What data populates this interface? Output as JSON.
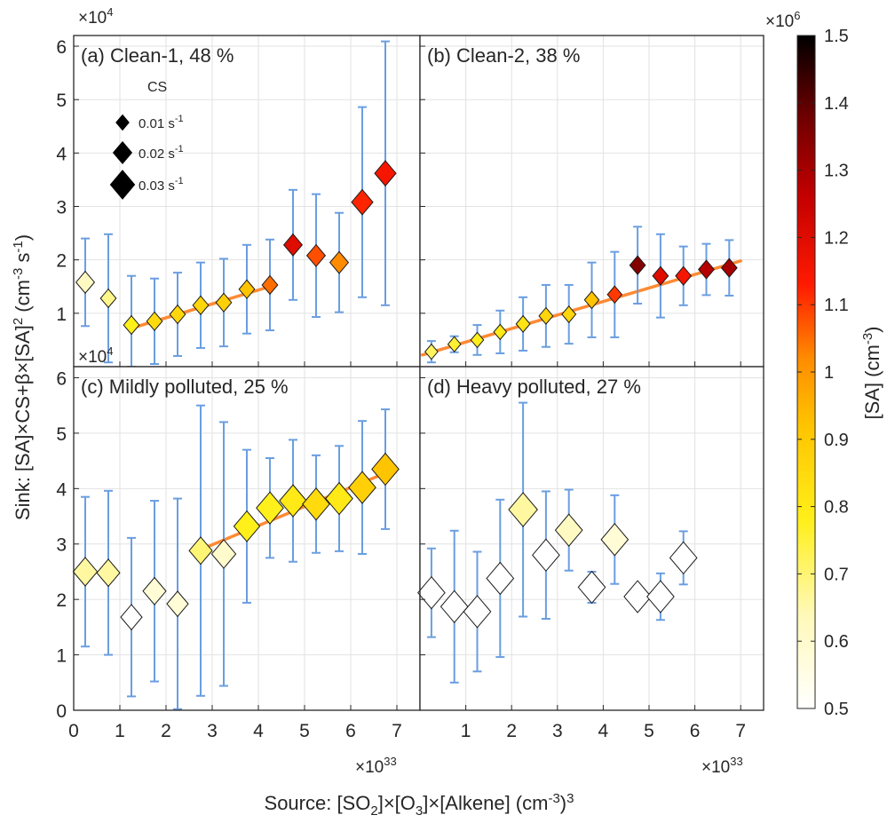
{
  "figure": {
    "y_multiplier_base": "×10",
    "y_multiplier_exp": "4",
    "x_multiplier_base": "×10",
    "x_multiplier_exp": "33",
    "ylabel": {
      "main": "Sink: [SA]×CS+β×[SA]",
      "sq": "2",
      "unit_open": " (cm",
      "unit_exp1": "-3",
      "unit_mid": " s",
      "unit_exp2": "-1",
      "unit_close": ")"
    },
    "xlabel": {
      "p1": "Source: [SO",
      "sub1": "2",
      "p2": "]×[O",
      "sub2": "3",
      "p3": "]×[Alkene] (cm",
      "sup1": "-3",
      "p4": ")",
      "sup2": "3"
    },
    "legend": {
      "title": "CS",
      "items": [
        {
          "label": "0.01 s",
          "exp": "-1",
          "cs": 0.01
        },
        {
          "label": "0.02 s",
          "exp": "-1",
          "cs": 0.02
        },
        {
          "label": "0.03 s",
          "exp": "-1",
          "cs": 0.03
        }
      ]
    },
    "colorbar": {
      "multiplier_base": "×10",
      "multiplier_exp": "6",
      "label": "[SA] (cm",
      "label_exp": "-3",
      "label_close": ")",
      "min": 0.5,
      "max": 1.5,
      "ticks": [
        "0.5",
        "0.6",
        "0.7",
        "0.8",
        "0.9",
        "1",
        "1.1",
        "1.2",
        "1.3",
        "1.4",
        "1.5"
      ]
    }
  },
  "chart_data": [
    {
      "type": "scatter",
      "title": "(a) Clean-1, 48 %",
      "xlim": [
        0,
        7.5
      ],
      "ylim": [
        0,
        6.2
      ],
      "x_ticks": [],
      "y_ticks": [
        "1",
        "2",
        "3",
        "4",
        "5",
        "6"
      ],
      "grid": true,
      "points": [
        {
          "x": 0.25,
          "y": 1.58,
          "err": 0.82,
          "sa": 0.62,
          "cs": 0.02
        },
        {
          "x": 0.75,
          "y": 1.28,
          "err": 1.2,
          "sa": 0.68,
          "cs": 0.015
        },
        {
          "x": 1.25,
          "y": 0.78,
          "err": 0.92,
          "sa": 0.78,
          "cs": 0.015
        },
        {
          "x": 1.75,
          "y": 0.85,
          "err": 0.8,
          "sa": 0.85,
          "cs": 0.015
        },
        {
          "x": 2.25,
          "y": 0.98,
          "err": 0.78,
          "sa": 0.86,
          "cs": 0.015
        },
        {
          "x": 2.75,
          "y": 1.15,
          "err": 0.8,
          "sa": 0.86,
          "cs": 0.015
        },
        {
          "x": 3.25,
          "y": 1.2,
          "err": 0.82,
          "sa": 0.88,
          "cs": 0.015
        },
        {
          "x": 3.75,
          "y": 1.45,
          "err": 0.83,
          "sa": 0.92,
          "cs": 0.015
        },
        {
          "x": 4.25,
          "y": 1.53,
          "err": 0.85,
          "sa": 1.05,
          "cs": 0.015
        },
        {
          "x": 4.75,
          "y": 2.28,
          "err": 1.03,
          "sa": 1.2,
          "cs": 0.02
        },
        {
          "x": 5.25,
          "y": 2.08,
          "err": 1.15,
          "sa": 1.08,
          "cs": 0.02
        },
        {
          "x": 5.75,
          "y": 1.95,
          "err": 0.93,
          "sa": 1.02,
          "cs": 0.02
        },
        {
          "x": 6.25,
          "y": 3.08,
          "err": 1.78,
          "sa": 1.12,
          "cs": 0.025
        },
        {
          "x": 6.75,
          "y": 3.62,
          "err": 2.47,
          "sa": 1.15,
          "cs": 0.025
        }
      ],
      "fit": {
        "x1": 1.25,
        "y1": 0.72,
        "x2": 4.25,
        "y2": 1.5
      }
    },
    {
      "type": "scatter",
      "title": "(b) Clean-2, 38 %",
      "xlim": [
        0,
        7.5
      ],
      "ylim": [
        0,
        6.2
      ],
      "x_ticks": [],
      "y_ticks": [],
      "grid": true,
      "points": [
        {
          "x": 0.25,
          "y": 0.28,
          "err": 0.2,
          "sa": 0.72,
          "cs": 0.01
        },
        {
          "x": 0.75,
          "y": 0.42,
          "err": 0.15,
          "sa": 0.76,
          "cs": 0.01
        },
        {
          "x": 1.25,
          "y": 0.5,
          "err": 0.28,
          "sa": 0.78,
          "cs": 0.01
        },
        {
          "x": 1.75,
          "y": 0.65,
          "err": 0.4,
          "sa": 0.8,
          "cs": 0.01
        },
        {
          "x": 2.25,
          "y": 0.8,
          "err": 0.5,
          "sa": 0.82,
          "cs": 0.012
        },
        {
          "x": 2.75,
          "y": 0.95,
          "err": 0.58,
          "sa": 0.86,
          "cs": 0.012
        },
        {
          "x": 3.25,
          "y": 0.98,
          "err": 0.55,
          "sa": 0.86,
          "cs": 0.012
        },
        {
          "x": 3.75,
          "y": 1.25,
          "err": 0.7,
          "sa": 0.92,
          "cs": 0.013
        },
        {
          "x": 4.25,
          "y": 1.35,
          "err": 0.8,
          "sa": 1.1,
          "cs": 0.013
        },
        {
          "x": 4.75,
          "y": 1.9,
          "err": 0.72,
          "sa": 1.35,
          "cs": 0.015
        },
        {
          "x": 5.25,
          "y": 1.7,
          "err": 0.78,
          "sa": 1.2,
          "cs": 0.015
        },
        {
          "x": 5.75,
          "y": 1.7,
          "err": 0.55,
          "sa": 1.15,
          "cs": 0.015
        },
        {
          "x": 6.25,
          "y": 1.82,
          "err": 0.48,
          "sa": 1.28,
          "cs": 0.015
        },
        {
          "x": 6.75,
          "y": 1.85,
          "err": 0.52,
          "sa": 1.3,
          "cs": 0.015
        }
      ],
      "fit": {
        "x1": 0.05,
        "y1": 0.22,
        "x2": 7.0,
        "y2": 1.98
      }
    },
    {
      "type": "scatter",
      "title": "(c) Mildly polluted, 25 %",
      "xlim": [
        0,
        7.5
      ],
      "ylim": [
        0,
        6.2
      ],
      "x_ticks": [
        "0",
        "1",
        "2",
        "3",
        "4",
        "5",
        "6",
        "7"
      ],
      "y_ticks": [
        "0",
        "1",
        "2",
        "3",
        "4",
        "5",
        "6"
      ],
      "grid": true,
      "points": [
        {
          "x": 0.25,
          "y": 2.5,
          "err": 1.35,
          "sa": 0.66,
          "cs": 0.03
        },
        {
          "x": 0.75,
          "y": 2.48,
          "err": 1.48,
          "sa": 0.66,
          "cs": 0.028
        },
        {
          "x": 1.25,
          "y": 1.68,
          "err": 1.43,
          "sa": 0.5,
          "cs": 0.025
        },
        {
          "x": 1.75,
          "y": 2.15,
          "err": 1.63,
          "sa": 0.58,
          "cs": 0.028
        },
        {
          "x": 2.25,
          "y": 1.92,
          "err": 1.9,
          "sa": 0.58,
          "cs": 0.025
        },
        {
          "x": 2.75,
          "y": 2.88,
          "err": 2.62,
          "sa": 0.7,
          "cs": 0.028
        },
        {
          "x": 3.25,
          "y": 2.82,
          "err": 2.38,
          "sa": 0.6,
          "cs": 0.03
        },
        {
          "x": 3.75,
          "y": 3.32,
          "err": 1.38,
          "sa": 0.78,
          "cs": 0.033
        },
        {
          "x": 4.25,
          "y": 3.65,
          "err": 0.9,
          "sa": 0.78,
          "cs": 0.035
        },
        {
          "x": 4.75,
          "y": 3.78,
          "err": 1.1,
          "sa": 0.8,
          "cs": 0.035
        },
        {
          "x": 5.25,
          "y": 3.72,
          "err": 0.88,
          "sa": 0.85,
          "cs": 0.035
        },
        {
          "x": 5.75,
          "y": 3.82,
          "err": 0.95,
          "sa": 0.8,
          "cs": 0.035
        },
        {
          "x": 6.25,
          "y": 4.02,
          "err": 1.2,
          "sa": 0.88,
          "cs": 0.035
        },
        {
          "x": 6.75,
          "y": 4.35,
          "err": 1.08,
          "sa": 0.92,
          "cs": 0.035
        }
      ],
      "fit": {
        "x1": 2.75,
        "y1": 2.9,
        "x2": 6.75,
        "y2": 4.28
      }
    },
    {
      "type": "scatter",
      "title": "(d) Heavy polluted, 27 %",
      "xlim": [
        0,
        7.5
      ],
      "ylim": [
        0,
        6.2
      ],
      "x_ticks": [
        "1",
        "2",
        "3",
        "4",
        "5",
        "6",
        "7"
      ],
      "y_ticks": [],
      "grid": true,
      "points": [
        {
          "x": 0.25,
          "y": 2.12,
          "err": 0.8,
          "sa": 0.5,
          "cs": 0.035
        },
        {
          "x": 0.75,
          "y": 1.87,
          "err": 1.37,
          "sa": 0.5,
          "cs": 0.035
        },
        {
          "x": 1.25,
          "y": 1.78,
          "err": 1.08,
          "sa": 0.5,
          "cs": 0.035
        },
        {
          "x": 1.75,
          "y": 2.38,
          "err": 1.42,
          "sa": 0.5,
          "cs": 0.035
        },
        {
          "x": 2.25,
          "y": 3.62,
          "err": 1.93,
          "sa": 0.66,
          "cs": 0.038
        },
        {
          "x": 2.75,
          "y": 2.8,
          "err": 1.15,
          "sa": 0.5,
          "cs": 0.035
        },
        {
          "x": 3.25,
          "y": 3.25,
          "err": 0.73,
          "sa": 0.62,
          "cs": 0.035
        },
        {
          "x": 3.75,
          "y": 2.22,
          "err": 0.28,
          "sa": 0.5,
          "cs": 0.035
        },
        {
          "x": 4.25,
          "y": 3.08,
          "err": 0.8,
          "sa": 0.58,
          "cs": 0.035
        },
        {
          "x": 4.75,
          "y": 2.05,
          "err": 0.0,
          "sa": 0.5,
          "cs": 0.035
        },
        {
          "x": 5.25,
          "y": 2.05,
          "err": 0.42,
          "sa": 0.5,
          "cs": 0.035
        },
        {
          "x": 5.75,
          "y": 2.75,
          "err": 0.48,
          "sa": 0.5,
          "cs": 0.035
        }
      ],
      "fit": null
    }
  ]
}
